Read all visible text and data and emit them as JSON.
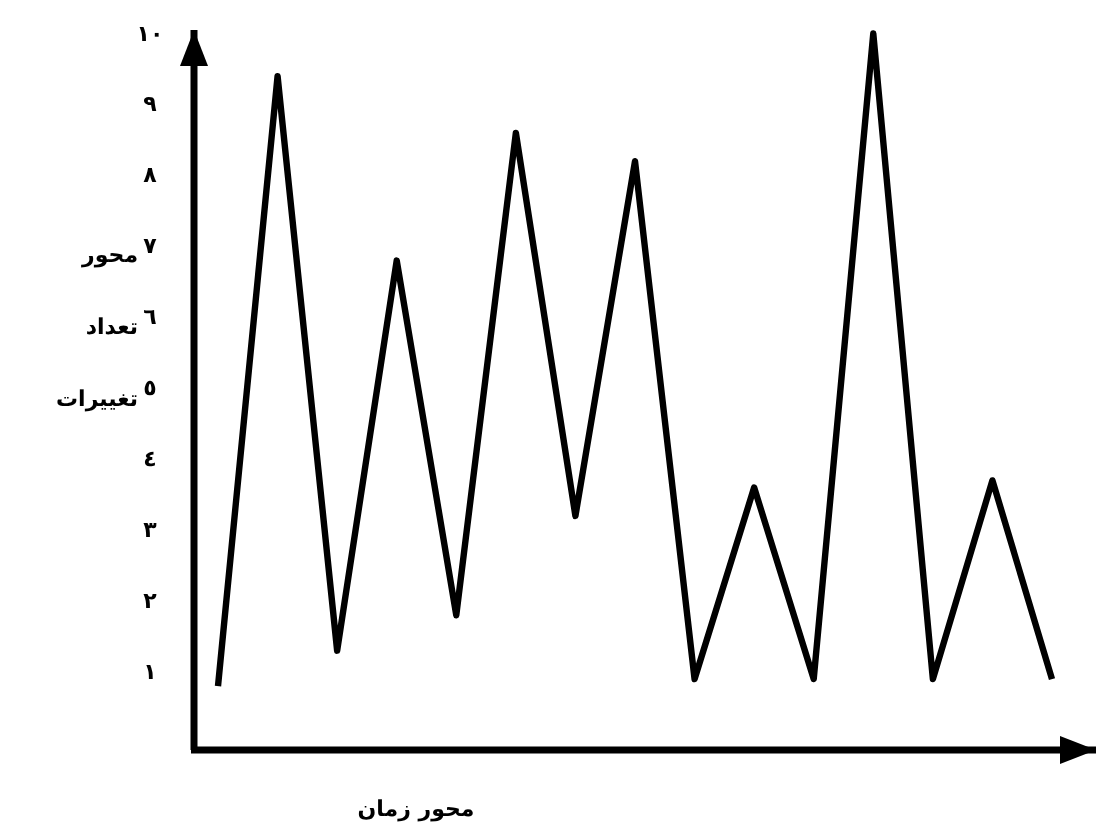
{
  "chart_data": {
    "type": "line",
    "xlabel": "محور زمان",
    "ylabel": "محور تعداد تغییرات",
    "categories": [
      null,
      null,
      null,
      null,
      null,
      null,
      null,
      null,
      null,
      null,
      null,
      null,
      null,
      null,
      null
    ],
    "series": [
      {
        "color": "#000000",
        "values": [
          0.8,
          9.4,
          1.3,
          6.8,
          1.8,
          8.6,
          3.2,
          8.2,
          0.9,
          3.6,
          0.9,
          10.0,
          0.9,
          3.7,
          0.9
        ]
      }
    ],
    "ylim": [
      -0.1,
      10.05
    ],
    "yticks": [
      {
        "value": 1,
        "label": "١"
      },
      {
        "value": 2,
        "label": "٢"
      },
      {
        "value": 3,
        "label": "٣"
      },
      {
        "value": 4,
        "label": "٤"
      },
      {
        "value": 5,
        "label": "٥"
      },
      {
        "value": 6,
        "label": "٦"
      },
      {
        "value": 7,
        "label": "٧"
      },
      {
        "value": 8,
        "label": "٨"
      },
      {
        "value": 9,
        "label": "٩"
      },
      {
        "value": 10,
        "label": "١٠"
      }
    ],
    "tick_labels": "y",
    "grid": false,
    "legend": false
  }
}
